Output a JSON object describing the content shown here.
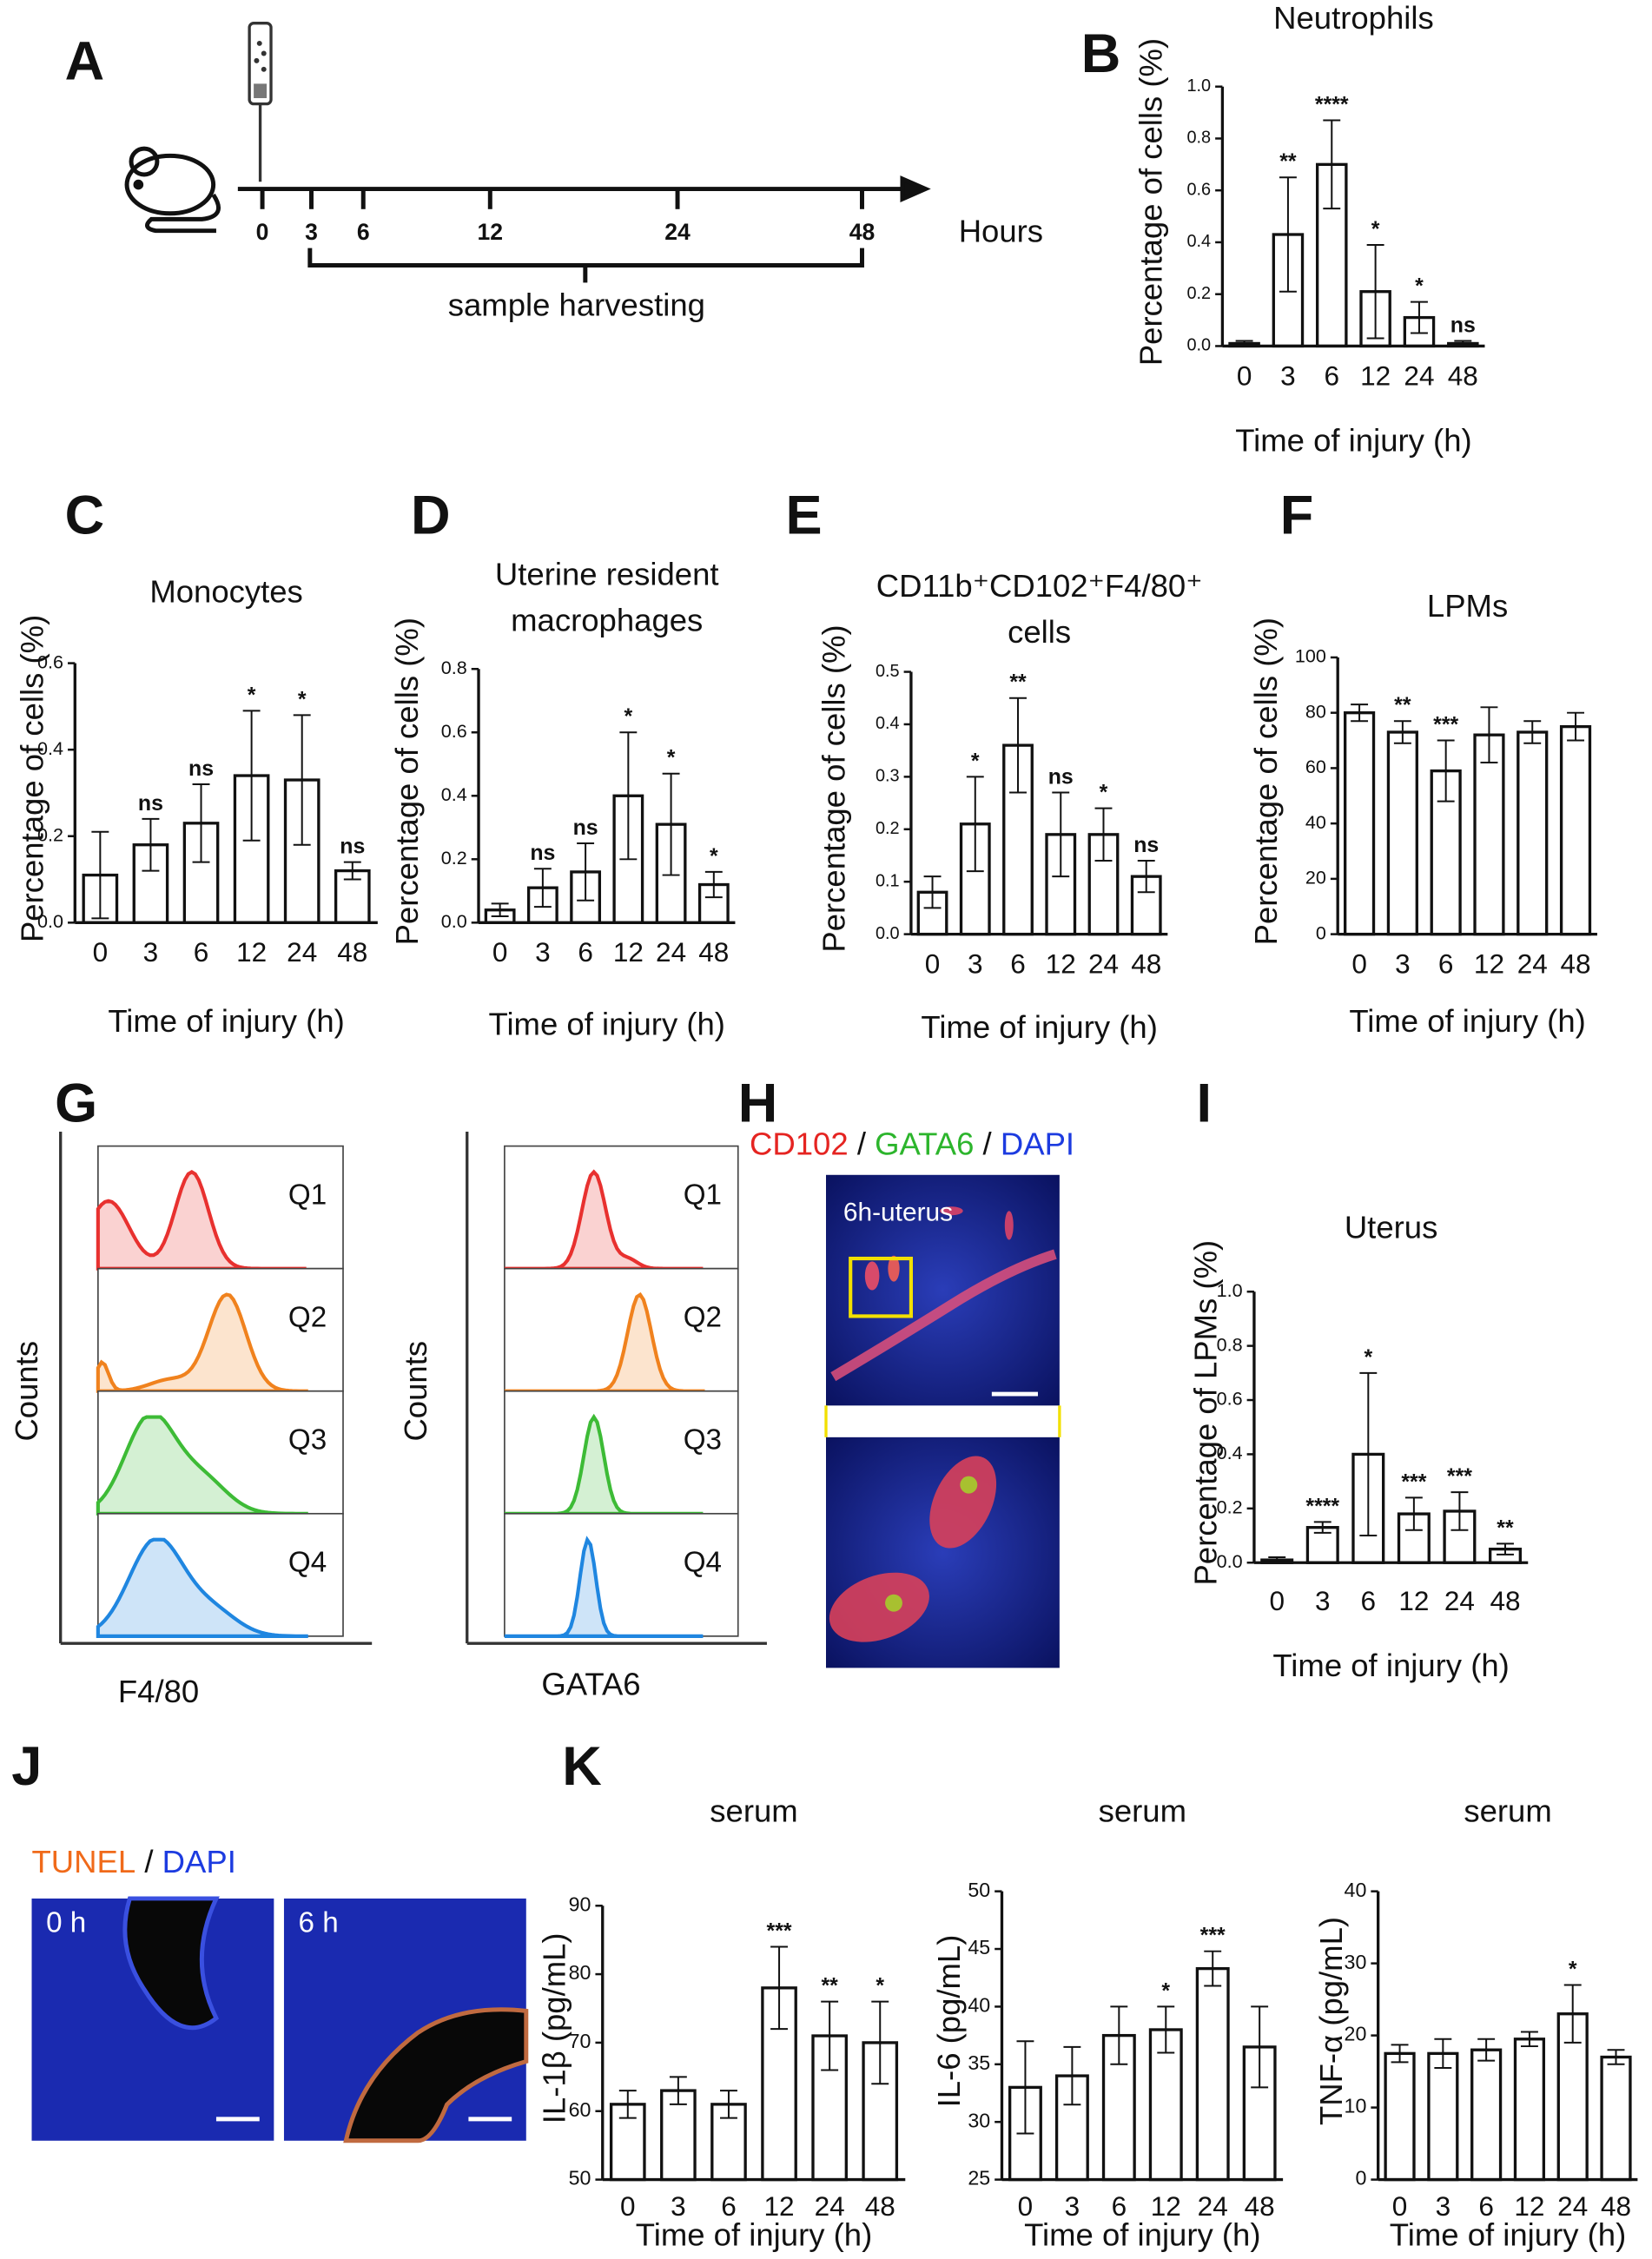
{
  "panel_labels": [
    "A",
    "B",
    "C",
    "D",
    "E",
    "F",
    "G",
    "H",
    "I",
    "J",
    "K"
  ],
  "timeline": {
    "ticks": [
      "0",
      "3",
      "6",
      "12",
      "24",
      "48"
    ],
    "unit": "Hours",
    "bracket_label": "sample harvesting"
  },
  "flow_cytometry": {
    "y_label": "Counts",
    "gates": [
      "Q1",
      "Q2",
      "Q3",
      "Q4"
    ],
    "markers": [
      "F4/80",
      "GATA6"
    ]
  },
  "image_h": {
    "stain_labels": [
      "CD102",
      "GATA6",
      "DAPI"
    ],
    "separator": "/",
    "caption": "6h-uterus"
  },
  "image_j": {
    "stain_labels": [
      "TUNEL",
      "DAPI"
    ],
    "separator": "/",
    "timepoints": [
      "0 h",
      "6 h"
    ]
  },
  "chart_data": [
    {
      "type": "bar",
      "title": "Neutrophils",
      "y_label": "Percentage of cells (%)",
      "x_label": "Time of injury (h)",
      "categories": [
        "0",
        "3",
        "6",
        "12",
        "24",
        "48"
      ],
      "values": [
        0.01,
        0.43,
        0.7,
        0.21,
        0.11,
        0.01
      ],
      "errors": [
        0.01,
        0.22,
        0.17,
        0.18,
        0.06,
        0.01
      ],
      "annotations": [
        null,
        "**",
        "****",
        "*",
        "*",
        "ns"
      ],
      "ylim": [
        0,
        1.0
      ],
      "yticks": [
        {
          "value": 0,
          "label": "0.0"
        },
        {
          "value": 0.2,
          "label": "0.2"
        },
        {
          "value": 0.4,
          "label": "0.4"
        },
        {
          "value": 0.6,
          "label": "0.6"
        },
        {
          "value": 0.8,
          "label": "0.8"
        },
        {
          "value": 1.0,
          "label": "1.0"
        }
      ]
    },
    {
      "type": "bar",
      "title": "Monocytes",
      "y_label": "Percentage of cells (%)",
      "x_label": "Time of injury (h)",
      "categories": [
        "0",
        "3",
        "6",
        "12",
        "24",
        "48"
      ],
      "values": [
        0.11,
        0.18,
        0.23,
        0.34,
        0.33,
        0.12
      ],
      "errors": [
        0.1,
        0.06,
        0.09,
        0.15,
        0.15,
        0.02
      ],
      "annotations": [
        null,
        "ns",
        "ns",
        "*",
        "*",
        "ns"
      ],
      "ylim": [
        0,
        0.6
      ],
      "yticks": [
        {
          "value": 0,
          "label": "0.0"
        },
        {
          "value": 0.2,
          "label": "0.2"
        },
        {
          "value": 0.4,
          "label": "0.4"
        },
        {
          "value": 0.6,
          "label": "0.6"
        }
      ]
    },
    {
      "type": "bar",
      "title": [
        "Uterine resident",
        "macrophages"
      ],
      "y_label": "Percentage of cells (%)",
      "x_label": "Time of injury (h)",
      "categories": [
        "0",
        "3",
        "6",
        "12",
        "24",
        "48"
      ],
      "values": [
        0.04,
        0.11,
        0.16,
        0.4,
        0.31,
        0.12
      ],
      "errors": [
        0.02,
        0.06,
        0.09,
        0.2,
        0.16,
        0.04
      ],
      "annotations": [
        null,
        "ns",
        "ns",
        "*",
        "*",
        "*"
      ],
      "ylim": [
        0,
        0.8
      ],
      "yticks": [
        {
          "value": 0,
          "label": "0.0"
        },
        {
          "value": 0.2,
          "label": "0.2"
        },
        {
          "value": 0.4,
          "label": "0.4"
        },
        {
          "value": 0.6,
          "label": "0.6"
        },
        {
          "value": 0.8,
          "label": "0.8"
        }
      ]
    },
    {
      "type": "bar",
      "title": [
        "CD11b⁺CD102⁺F4/80⁺",
        "cells"
      ],
      "y_label": "Percentage of cells (%)",
      "x_label": "Time of injury (h)",
      "categories": [
        "0",
        "3",
        "6",
        "12",
        "24",
        "48"
      ],
      "values": [
        0.08,
        0.21,
        0.36,
        0.19,
        0.19,
        0.11
      ],
      "errors": [
        0.03,
        0.09,
        0.09,
        0.08,
        0.05,
        0.03
      ],
      "annotations": [
        null,
        "*",
        "**",
        "ns",
        "*",
        "ns"
      ],
      "ylim": [
        0,
        0.5
      ],
      "yticks": [
        {
          "value": 0,
          "label": "0.0"
        },
        {
          "value": 0.1,
          "label": "0.1"
        },
        {
          "value": 0.2,
          "label": "0.2"
        },
        {
          "value": 0.3,
          "label": "0.3"
        },
        {
          "value": 0.4,
          "label": "0.4"
        },
        {
          "value": 0.5,
          "label": "0.5"
        }
      ]
    },
    {
      "type": "bar",
      "title": "LPMs",
      "y_label": "Percentage of cells (%)",
      "x_label": "Time of injury (h)",
      "categories": [
        "0",
        "3",
        "6",
        "12",
        "24",
        "48"
      ],
      "values": [
        80,
        73,
        59,
        72,
        73,
        75
      ],
      "errors": [
        3,
        4,
        11,
        10,
        4,
        5
      ],
      "annotations": [
        null,
        "**",
        "***",
        null,
        null,
        null
      ],
      "ylim": [
        0,
        100
      ],
      "yticks": [
        0,
        20,
        40,
        60,
        80,
        100
      ]
    },
    {
      "type": "bar",
      "title": "Uterus",
      "y_label": "Percentage of LPMs (%)",
      "x_label": "Time of injury (h)",
      "categories": [
        "0",
        "3",
        "6",
        "12",
        "24",
        "48"
      ],
      "values": [
        0.01,
        0.13,
        0.4,
        0.18,
        0.19,
        0.05
      ],
      "errors": [
        0.01,
        0.02,
        0.3,
        0.06,
        0.07,
        0.02
      ],
      "annotations": [
        null,
        "****",
        "*",
        "***",
        "***",
        "**"
      ],
      "ylim": [
        0,
        1.0
      ],
      "yticks": [
        {
          "value": 0,
          "label": "0.0"
        },
        {
          "value": 0.2,
          "label": "0.2"
        },
        {
          "value": 0.4,
          "label": "0.4"
        },
        {
          "value": 0.6,
          "label": "0.6"
        },
        {
          "value": 0.8,
          "label": "0.8"
        },
        {
          "value": 1.0,
          "label": "1.0"
        }
      ]
    },
    {
      "type": "bar",
      "title": "serum",
      "y_label": "IL-1β (pg/mL)",
      "x_label": "Time of injury (h)",
      "categories": [
        "0",
        "3",
        "6",
        "12",
        "24",
        "48"
      ],
      "values": [
        61,
        63,
        61,
        78,
        71,
        70
      ],
      "errors": [
        2,
        2,
        2,
        6,
        5,
        6
      ],
      "annotations": [
        null,
        null,
        null,
        "***",
        "**",
        "*"
      ],
      "ylim": [
        50,
        90
      ],
      "yticks": [
        50,
        60,
        70,
        80,
        90
      ]
    },
    {
      "type": "bar",
      "title": "serum",
      "y_label": "IL-6 (pg/mL)",
      "x_label": "Time of injury (h)",
      "categories": [
        "0",
        "3",
        "6",
        "12",
        "24",
        "48"
      ],
      "values": [
        33,
        34,
        37.5,
        38,
        43.3,
        36.5
      ],
      "errors": [
        4,
        2.5,
        2.5,
        2,
        1.5,
        3.5
      ],
      "annotations": [
        null,
        null,
        null,
        "*",
        "***",
        null
      ],
      "ylim": [
        25,
        50
      ],
      "yticks": [
        25,
        30,
        35,
        40,
        45,
        50
      ]
    },
    {
      "type": "bar",
      "title": "serum",
      "y_label": "TNF-α (pg/mL)",
      "x_label": "Time of injury (h)",
      "categories": [
        "0",
        "3",
        "6",
        "12",
        "24",
        "48"
      ],
      "values": [
        17.5,
        17.5,
        18,
        19.5,
        23,
        17
      ],
      "errors": [
        1.2,
        2,
        1.5,
        1,
        4,
        1
      ],
      "annotations": [
        null,
        null,
        null,
        null,
        "*",
        null
      ],
      "ylim": [
        0,
        40
      ],
      "yticks": [
        0,
        10,
        20,
        30,
        40
      ]
    }
  ]
}
